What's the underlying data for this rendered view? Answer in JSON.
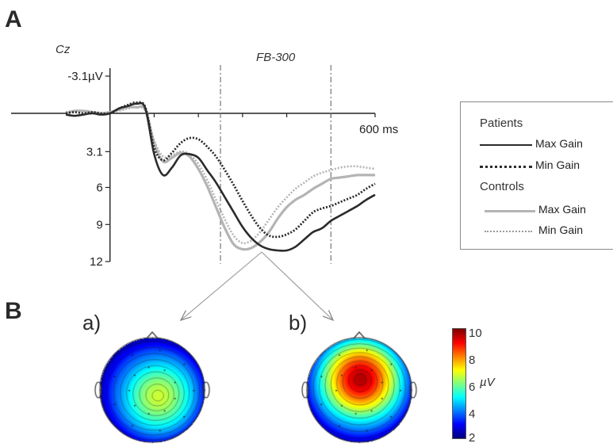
{
  "panels": {
    "a_label": "A",
    "b_label": "B",
    "sub_a": "a)",
    "sub_b": "b)"
  },
  "chart_data": {
    "type": "line",
    "title": "",
    "electrode": "Cz",
    "window_label": "FB-300",
    "xlabel": "ms",
    "x_end_label": "600 ms",
    "ylabel": "µV",
    "y_inverted": true,
    "ylim": [
      -3.1,
      12
    ],
    "xlim": [
      -100,
      600
    ],
    "yticks": [
      "-3.1µV",
      "3.1",
      "6",
      "9",
      "12"
    ],
    "ytick_values": [
      -3.1,
      3.1,
      6,
      9,
      12
    ],
    "window_ms": [
      250,
      500
    ],
    "legend": {
      "groups": [
        {
          "name": "Patients",
          "entries": [
            {
              "label": "Max Gain",
              "series": 0
            },
            {
              "label": "Min Gain",
              "series": 1
            }
          ]
        },
        {
          "name": "Controls",
          "entries": [
            {
              "label": "Max Gain",
              "series": 2
            },
            {
              "label": "Min Gain",
              "series": 3
            }
          ]
        }
      ]
    },
    "series": [
      {
        "group": "Patients",
        "name": "Max Gain",
        "color": "#2b2b2b",
        "style": "solid",
        "width": 2.6,
        "x": [
          -100,
          -80,
          -60,
          -40,
          -20,
          0,
          20,
          40,
          60,
          80,
          100,
          120,
          140,
          160,
          180,
          200,
          220,
          240,
          260,
          280,
          300,
          320,
          340,
          360,
          380,
          400,
          420,
          440,
          460,
          480,
          500,
          520,
          540,
          560,
          580,
          600
        ],
        "y": [
          0.1,
          0.2,
          0.1,
          0,
          0.1,
          0,
          -0.4,
          -0.6,
          -0.8,
          -0.4,
          3.3,
          5.0,
          4.4,
          3.4,
          3.3,
          3.6,
          4.6,
          5.6,
          6.8,
          8.0,
          9.2,
          10.1,
          10.7,
          11.0,
          11.1,
          11.1,
          10.8,
          10.2,
          9.6,
          9.3,
          8.7,
          8.3,
          7.9,
          7.5,
          7.0,
          6.6
        ]
      },
      {
        "group": "Patients",
        "name": "Min Gain",
        "color": "#2b2b2b",
        "style": "dotted",
        "width": 2.8,
        "x": [
          -100,
          -80,
          -60,
          -40,
          -20,
          0,
          20,
          40,
          60,
          80,
          100,
          120,
          140,
          160,
          180,
          200,
          220,
          240,
          260,
          280,
          300,
          320,
          340,
          360,
          380,
          400,
          420,
          440,
          460,
          480,
          500,
          520,
          540,
          560,
          580,
          600
        ],
        "y": [
          0.0,
          -0.1,
          0.0,
          -0.1,
          0,
          0,
          -0.4,
          -0.7,
          -0.9,
          -0.5,
          2.8,
          3.8,
          3.2,
          2.4,
          2.0,
          2.1,
          2.7,
          3.5,
          4.6,
          5.8,
          7.1,
          8.3,
          9.3,
          9.9,
          10.0,
          9.8,
          9.4,
          8.7,
          8.0,
          7.7,
          7.5,
          7.2,
          6.9,
          6.6,
          6.1,
          5.7
        ]
      },
      {
        "group": "Controls",
        "name": "Max Gain",
        "color": "#b4b4b4",
        "style": "solid",
        "width": 3.2,
        "x": [
          -100,
          -80,
          -60,
          -40,
          -20,
          0,
          20,
          40,
          60,
          80,
          100,
          120,
          140,
          160,
          180,
          200,
          220,
          240,
          260,
          280,
          300,
          320,
          340,
          360,
          380,
          400,
          420,
          440,
          460,
          480,
          500,
          520,
          540,
          560,
          580,
          600
        ],
        "y": [
          0.0,
          -0.2,
          -0.2,
          -0.1,
          0,
          -0.1,
          -0.3,
          -0.5,
          -0.5,
          -0.3,
          2.4,
          3.9,
          3.6,
          3.2,
          3.5,
          4.5,
          5.9,
          7.6,
          9.3,
          10.6,
          11.0,
          10.9,
          10.4,
          9.6,
          8.5,
          7.6,
          7.0,
          6.6,
          6.1,
          5.7,
          5.3,
          5.2,
          5.1,
          5.0,
          5.0,
          5.0
        ]
      },
      {
        "group": "Controls",
        "name": "Min Gain",
        "color": "#b4b4b4",
        "style": "dotted",
        "width": 2.6,
        "x": [
          -100,
          -80,
          -60,
          -40,
          -20,
          0,
          20,
          40,
          60,
          80,
          100,
          120,
          140,
          160,
          180,
          200,
          220,
          240,
          260,
          280,
          300,
          320,
          340,
          360,
          380,
          400,
          420,
          440,
          460,
          480,
          500,
          520,
          540,
          560,
          580,
          600
        ],
        "y": [
          -0.1,
          -0.2,
          -0.1,
          -0.1,
          0,
          -0.1,
          -0.2,
          -0.4,
          -0.5,
          -0.2,
          2.2,
          3.5,
          3.4,
          3.1,
          3.3,
          4.1,
          5.4,
          7.0,
          8.6,
          9.9,
          10.5,
          10.3,
          9.6,
          8.6,
          7.6,
          6.8,
          6.1,
          5.6,
          5.1,
          4.8,
          4.6,
          4.4,
          4.3,
          4.3,
          4.4,
          4.5
        ]
      }
    ]
  },
  "topomaps": [
    {
      "label": "a)",
      "peak_uV": 6.6,
      "peak_offset": [
        0.12,
        0.12
      ]
    },
    {
      "label": "b)",
      "peak_uV": 9.6,
      "peak_offset": [
        0.02,
        -0.22
      ]
    }
  ],
  "colorbar": {
    "min": 2,
    "max": 10,
    "ticks": [
      "2",
      "4",
      "6",
      "8",
      "10"
    ],
    "unit": "µV",
    "colormap": "jet"
  }
}
